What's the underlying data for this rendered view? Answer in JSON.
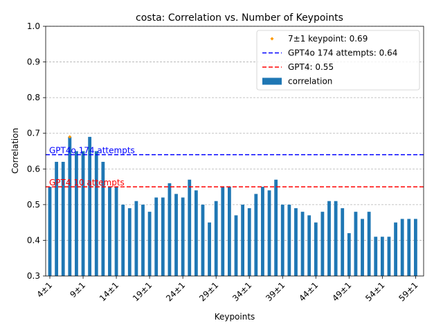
{
  "chart_data": {
    "type": "bar",
    "title": "costa: Correlation vs. Number of Keypoints",
    "xlabel": "Keypoints",
    "ylabel": "Correlation",
    "ylim": [
      0.3,
      1.0
    ],
    "yticks": [
      "0.3",
      "0.4",
      "0.5",
      "0.6",
      "0.7",
      "0.8",
      "0.9",
      "1.0"
    ],
    "grid": "y-dashed",
    "legend_position": "top-right",
    "categories": [
      "4±1",
      "5±1",
      "6±1",
      "7±1",
      "8±1",
      "9±1",
      "10±1",
      "11±1",
      "12±1",
      "13±1",
      "14±1",
      "15±1",
      "16±1",
      "17±1",
      "18±1",
      "19±1",
      "20±1",
      "21±1",
      "22±1",
      "23±1",
      "24±1",
      "25±1",
      "26±1",
      "27±1",
      "28±1",
      "29±1",
      "30±1",
      "31±1",
      "32±1",
      "33±1",
      "34±1",
      "35±1",
      "36±1",
      "37±1",
      "38±1",
      "39±1",
      "40±1",
      "41±1",
      "42±1",
      "43±1",
      "44±1",
      "45±1",
      "46±1",
      "47±1",
      "48±1",
      "49±1",
      "50±1",
      "51±1",
      "52±1",
      "53±1",
      "54±1",
      "55±1",
      "56±1",
      "57±1",
      "58±1",
      "59±1"
    ],
    "series": [
      {
        "name": "correlation",
        "color": "#1f77b4",
        "values": [
          0.55,
          0.62,
          0.62,
          0.69,
          0.65,
          0.65,
          0.69,
          0.65,
          0.62,
          0.55,
          0.55,
          0.5,
          0.49,
          0.51,
          0.5,
          0.48,
          0.52,
          0.52,
          0.56,
          0.53,
          0.52,
          0.57,
          0.54,
          0.5,
          0.45,
          0.51,
          0.55,
          0.55,
          0.47,
          0.5,
          0.49,
          0.53,
          0.55,
          0.54,
          0.57,
          0.5,
          0.5,
          0.49,
          0.48,
          0.47,
          0.45,
          0.48,
          0.51,
          0.51,
          0.49,
          0.42,
          0.48,
          0.46,
          0.48,
          0.41,
          0.41,
          0.41,
          0.45,
          0.46,
          0.46,
          0.46
        ]
      }
    ],
    "highlight_point": {
      "label": "7±1 keypoint: 0.69",
      "category": "7±1",
      "value": 0.69,
      "color": "#ff9900"
    },
    "reference_lines": [
      {
        "legend": "GPT4o 174 attempts: 0.64",
        "annotation": "GPT4o 174 attempts",
        "value": 0.64,
        "color": "#0000ff"
      },
      {
        "legend": "GPT4: 0.55",
        "annotation": "GPT4 10 attempts",
        "value": 0.55,
        "color": "#ff0000"
      }
    ],
    "legend": [
      {
        "kind": "point",
        "label": "7±1 keypoint: 0.69",
        "color": "#ff9900"
      },
      {
        "kind": "dashed",
        "label": "GPT4o 174 attempts: 0.64",
        "color": "#0000ff"
      },
      {
        "kind": "dashed",
        "label": "GPT4: 0.55",
        "color": "#ff0000"
      },
      {
        "kind": "bar",
        "label": "correlation",
        "color": "#1f77b4"
      }
    ]
  }
}
